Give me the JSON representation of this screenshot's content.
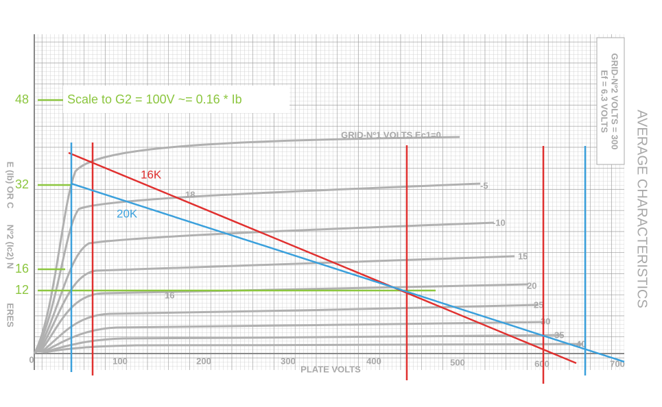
{
  "annotation": {
    "scale_note": "Scale to G2 = 100V ~= 0.16 * Ib"
  },
  "left_labels": [
    "48",
    "32",
    "16",
    "12"
  ],
  "load_lines": [
    "16K",
    "20K"
  ],
  "x_axis": {
    "ticks": [
      "0",
      "100",
      "200",
      "300",
      "400",
      "500",
      "600",
      "700"
    ],
    "title": "PLATE VOLTS"
  },
  "curve_labels": [
    "GRID-Nº1 VOLTS Ec1=0",
    "-5",
    "-10",
    "15",
    "20",
    "25",
    "30",
    "35",
    "40",
    "18",
    "16"
  ],
  "side": {
    "title": "AVERAGE CHARACTERISTICS",
    "conditions": [
      "Ef = 6.3 VOLTS",
      "GRID-Nº2 VOLTS = 300"
    ]
  },
  "left_edge": [
    "E (Ib) OR C",
    "Nº2 (Ic2) N",
    "ERES"
  ]
}
